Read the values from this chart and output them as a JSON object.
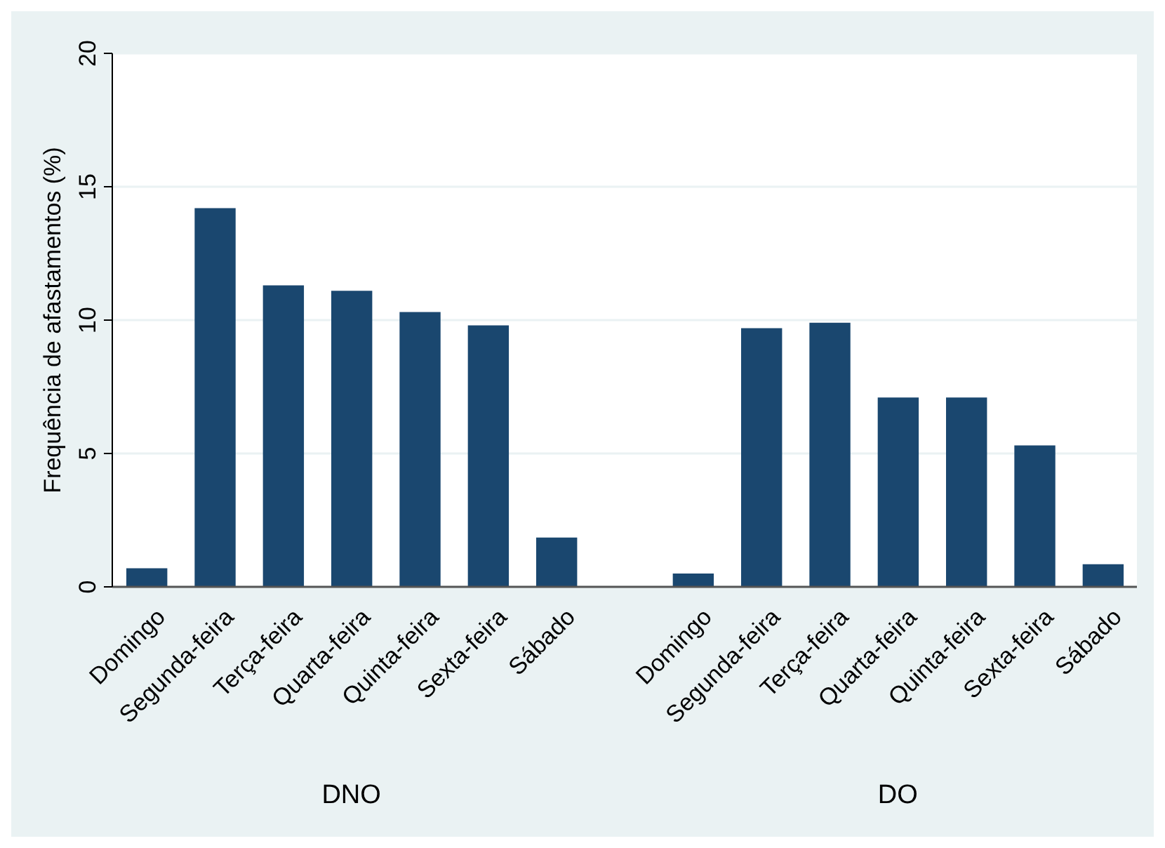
{
  "chart_data": {
    "type": "bar",
    "ylabel": "Frequência de afastamentos (%)",
    "categories": [
      "Domingo",
      "Segunda-feira",
      "Terça-feira",
      "Quarta-feira",
      "Quinta-feira",
      "Sexta-feira",
      "Sábado",
      "Domingo",
      "Segunda-feira",
      "Terça-feira",
      "Quarta-feira",
      "Quinta-feira",
      "Sexta-feira",
      "Sábado"
    ],
    "values": [
      0.7,
      14.2,
      11.3,
      11.1,
      10.3,
      9.8,
      1.85,
      0.5,
      9.7,
      9.9,
      7.1,
      7.1,
      5.3,
      0.85
    ],
    "color": "#1a476f",
    "ylim": [
      0,
      20
    ],
    "yticks": [
      0,
      5,
      10,
      15,
      20
    ],
    "grid": "y",
    "annotations": [
      "DNO",
      "DO"
    ]
  }
}
